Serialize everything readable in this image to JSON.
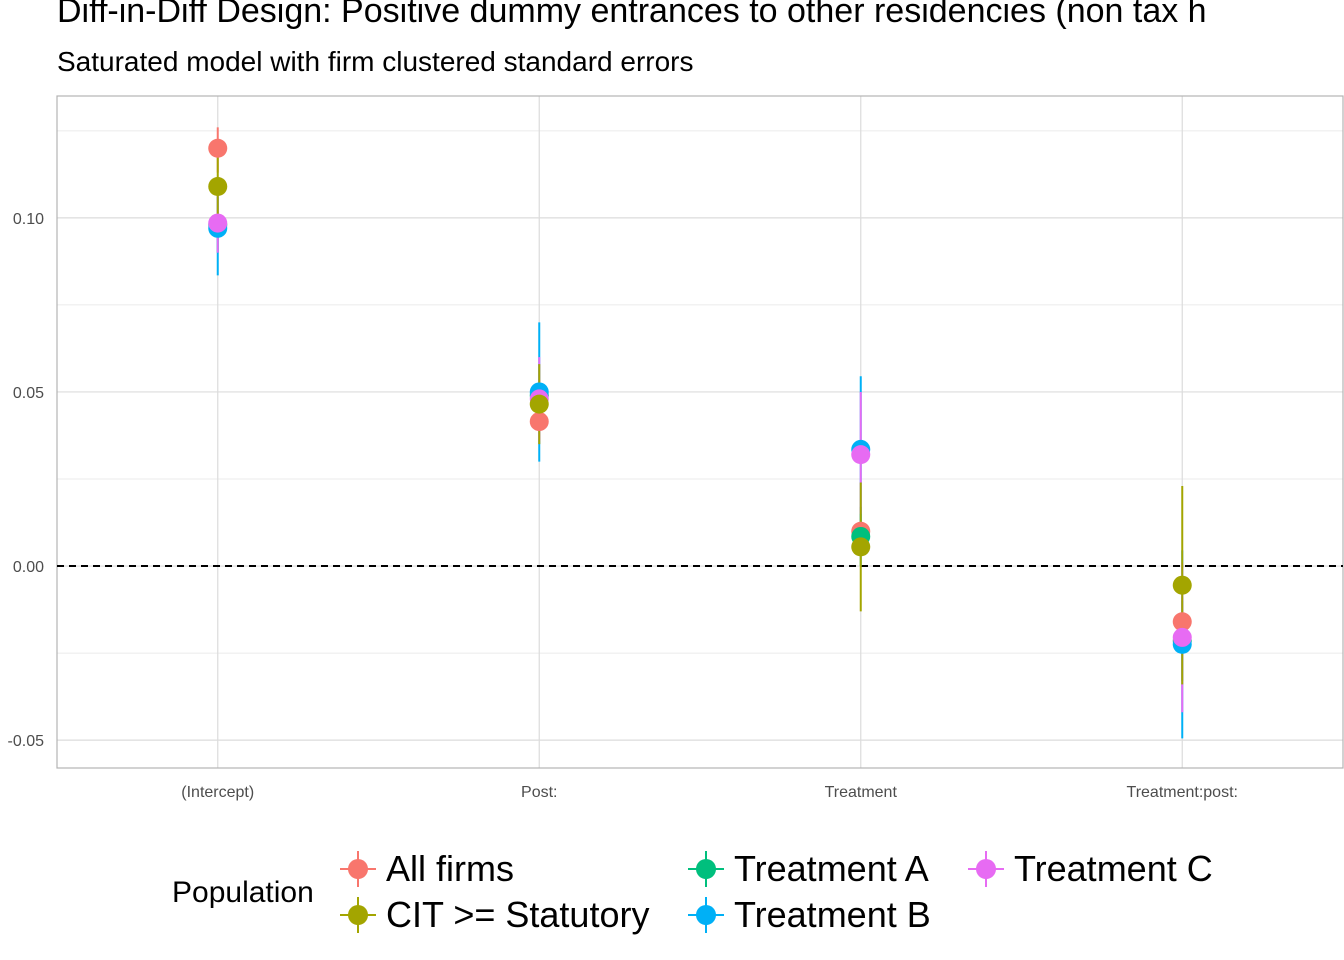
{
  "title": "Diff-in-Diff Design: Positive dummy entrances to other residencies (non tax h",
  "subtitle": "Saturated model with firm clustered standard errors",
  "chart_data": {
    "type": "scatter",
    "title": "Diff-in-Diff Design: Positive dummy entrances to other residencies (non tax h",
    "subtitle": "Saturated model with firm clustered standard errors",
    "xlabel": "",
    "ylabel": "",
    "categories": [
      "(Intercept)",
      "Post:",
      "Treatment",
      "Treatment:post:"
    ],
    "ylim": [
      -0.058,
      0.135
    ],
    "yticks": [
      -0.05,
      0.0,
      0.05,
      0.1
    ],
    "ytick_labels": [
      "-0.05",
      "0.00",
      "0.05",
      "0.10"
    ],
    "reference_line": 0,
    "grid": true,
    "legend_title": "Population",
    "legend_position": "bottom",
    "series": [
      {
        "name": "All firms",
        "color": "#F8766D",
        "values": [
          0.12,
          0.0415,
          0.01,
          -0.016
        ],
        "lower": [
          0.113,
          0.035,
          0.003,
          -0.023
        ],
        "upper": [
          0.126,
          0.048,
          0.017,
          -0.009
        ]
      },
      {
        "name": "Treatment A",
        "color": "#00BF7D",
        "values": [
          0.098,
          0.049,
          0.0085,
          -0.0215
        ],
        "lower": [
          0.09,
          0.04,
          0.0,
          -0.033
        ],
        "upper": [
          0.106,
          0.058,
          0.017,
          -0.01
        ]
      },
      {
        "name": "Treatment B",
        "color": "#00B0F6",
        "values": [
          0.097,
          0.05,
          0.0335,
          -0.0225
        ],
        "lower": [
          0.0835,
          0.03,
          0.0125,
          -0.0495
        ],
        "upper": [
          0.1105,
          0.07,
          0.0545,
          0.0045
        ]
      },
      {
        "name": "Treatment C",
        "color": "#E76BF3",
        "values": [
          0.0985,
          0.048,
          0.032,
          -0.0205
        ],
        "lower": [
          0.09,
          0.036,
          0.015,
          -0.042
        ],
        "upper": [
          0.107,
          0.06,
          0.05,
          0.001
        ]
      },
      {
        "name": "CIT >= Statutory",
        "color": "#A3A500",
        "values": [
          0.109,
          0.0465,
          0.0055,
          -0.0055
        ],
        "lower": [
          0.1,
          0.035,
          -0.013,
          -0.034
        ],
        "upper": [
          0.118,
          0.058,
          0.024,
          0.023
        ]
      }
    ]
  },
  "legend": {
    "title": "Population",
    "items": [
      {
        "label": "All firms",
        "color": "#F8766D"
      },
      {
        "label": "CIT >= Statutory",
        "color": "#A3A500"
      },
      {
        "label": "Treatment A",
        "color": "#00BF7D"
      },
      {
        "label": "Treatment B",
        "color": "#00B0F6"
      },
      {
        "label": "Treatment C",
        "color": "#E76BF3"
      }
    ]
  }
}
